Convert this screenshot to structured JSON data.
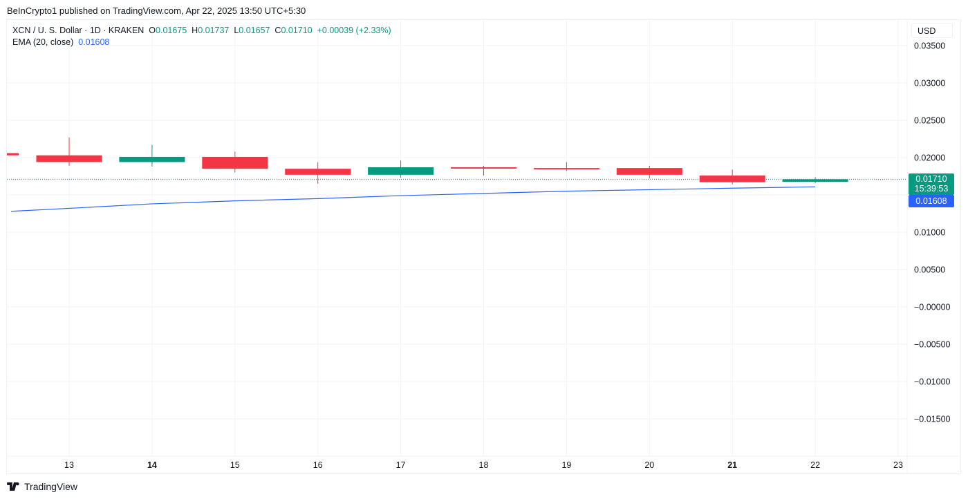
{
  "header": {
    "published_line": "BeInCrypto1 published on TradingView.com, Apr 22, 2025 13:50 UTC+5:30"
  },
  "legend": {
    "symbol_line": "XCN / U. S. Dollar · 1D · KRAKEN",
    "o_label": "O",
    "o_value": "0.01675",
    "h_label": "H",
    "h_value": "0.01737",
    "l_label": "L",
    "l_value": "0.01657",
    "c_label": "C",
    "c_value": "0.01710",
    "change": "+0.00039 (+2.33%)",
    "ema_label": "EMA (20, close)",
    "ema_value": "0.01608"
  },
  "price_axis": {
    "currency": "USD",
    "last_price": "0.01710",
    "countdown": "15:39:53",
    "ema_price": "0.01608"
  },
  "footer": {
    "brand": "TradingView"
  },
  "colors": {
    "up": "#089981",
    "down": "#f23645",
    "ema": "#2962ff",
    "grid": "#f0f3fa"
  },
  "chart_data": {
    "type": "candlestick",
    "title": "XCN / U. S. Dollar · 1D · KRAKEN",
    "xlabel": "",
    "ylabel": "USD",
    "ylim": [
      -0.0195,
      0.0385
    ],
    "grid": true,
    "x_ticks": [
      "13",
      "14",
      "15",
      "16",
      "17",
      "18",
      "19",
      "20",
      "21",
      "22",
      "23"
    ],
    "x_ticks_bold": [
      "14",
      "21"
    ],
    "y_ticks": [
      "0.03500",
      "0.03000",
      "0.02500",
      "0.02000",
      "0.01500",
      "0.01000",
      "0.00500",
      "−0.00000",
      "−0.00500",
      "−0.01000",
      "−0.01500"
    ],
    "y_tick_values": [
      0.035,
      0.03,
      0.025,
      0.02,
      0.015,
      0.01,
      0.005,
      0,
      -0.005,
      -0.01,
      -0.015
    ],
    "candles": [
      {
        "day": "12",
        "open": 0.0206,
        "high": 0.0206,
        "low": 0.0203,
        "close": 0.0203,
        "partial": true
      },
      {
        "day": "13",
        "open": 0.0203,
        "high": 0.0227,
        "low": 0.0189,
        "close": 0.0194
      },
      {
        "day": "14",
        "open": 0.0194,
        "high": 0.0217,
        "low": 0.0188,
        "close": 0.0201
      },
      {
        "day": "15",
        "open": 0.0201,
        "high": 0.0208,
        "low": 0.018,
        "close": 0.0185
      },
      {
        "day": "16",
        "open": 0.0185,
        "high": 0.0194,
        "low": 0.0165,
        "close": 0.0177
      },
      {
        "day": "17",
        "open": 0.0177,
        "high": 0.0196,
        "low": 0.0173,
        "close": 0.0187
      },
      {
        "day": "18",
        "open": 0.0187,
        "high": 0.0189,
        "low": 0.0176,
        "close": 0.0186
      },
      {
        "day": "19",
        "open": 0.0186,
        "high": 0.0194,
        "low": 0.0182,
        "close": 0.0185
      },
      {
        "day": "20",
        "open": 0.0186,
        "high": 0.0189,
        "low": 0.0172,
        "close": 0.0177
      },
      {
        "day": "21",
        "open": 0.0176,
        "high": 0.0184,
        "low": 0.0164,
        "close": 0.0167
      },
      {
        "day": "22",
        "open": 0.01675,
        "high": 0.01737,
        "low": 0.01657,
        "close": 0.0171
      }
    ],
    "series": [
      {
        "name": "EMA (20, close)",
        "x": [
          "12.3",
          "13",
          "14",
          "15",
          "16",
          "17",
          "18",
          "19",
          "20",
          "21",
          "22"
        ],
        "values": [
          0.0128,
          0.0132,
          0.0138,
          0.0142,
          0.0145,
          0.0149,
          0.0152,
          0.0155,
          0.0157,
          0.0159,
          0.01608
        ]
      }
    ],
    "last_price_line": 0.0171,
    "legend_position": "top-left"
  }
}
